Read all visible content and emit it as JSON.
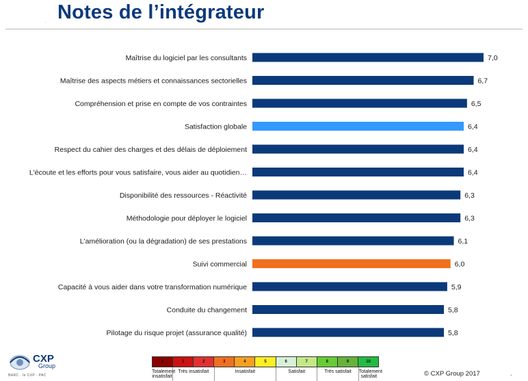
{
  "page": {
    "title": "Notes de l’intégrateur",
    "copyright": "© CXP Group  2017"
  },
  "logo": {
    "name": "CXP",
    "sub": "Group",
    "tagline": "BARC · le CXP · PAC"
  },
  "colors": {
    "bar_default": "#0b3a7a",
    "bar_highlight_blue": "#3399ff",
    "bar_highlight_orange": "#f07020",
    "title": "#0b3a7a"
  },
  "chart_data": {
    "type": "bar",
    "orientation": "horizontal",
    "categories": [
      "Maîtrise du logiciel par les consultants",
      "Maîtrise des aspects métiers et connaissances sectorielles",
      "Compréhension et prise en compte de vos contraintes",
      "Satisfaction globale",
      "Respect du cahier des charges et des délais de déploiement",
      "L'écoute et les efforts pour vous satisfaire, vous aider au quotidien…",
      "Disponibilité des ressources - Réactivité",
      "Méthodologie pour déployer le logiciel",
      "L'amélioration (ou la dégradation) de ses prestations",
      "Suivi commercial",
      "Capacité à vous aider dans votre transformation numérique",
      "Conduite du changement",
      "Pilotage du risque projet (assurance qualité)"
    ],
    "values": [
      7.0,
      6.7,
      6.5,
      6.4,
      6.4,
      6.4,
      6.3,
      6.3,
      6.1,
      6.0,
      5.9,
      5.8,
      5.8
    ],
    "value_labels": [
      "7,0",
      "6,7",
      "6,5",
      "6,4",
      "6,4",
      "6,4",
      "6,3",
      "6,3",
      "6,1",
      "6,0",
      "5,9",
      "5,8",
      "5,8"
    ],
    "bar_colors": [
      "#0b3a7a",
      "#0b3a7a",
      "#0b3a7a",
      "#3399ff",
      "#0b3a7a",
      "#0b3a7a",
      "#0b3a7a",
      "#0b3a7a",
      "#0b3a7a",
      "#f07020",
      "#0b3a7a",
      "#0b3a7a",
      "#0b3a7a"
    ],
    "xlim": [
      0,
      7.0
    ],
    "grid": false,
    "legend": "none"
  },
  "scale_legend": {
    "cells": [
      {
        "label": "0",
        "color": "#8b0000"
      },
      {
        "label": "1",
        "color": "#cc1111"
      },
      {
        "label": "2",
        "color": "#e23030"
      },
      {
        "label": "3",
        "color": "#f07020"
      },
      {
        "label": "4",
        "color": "#f5a020"
      },
      {
        "label": "5",
        "color": "#ffee22"
      },
      {
        "label": "6",
        "color": "#d8f0d8"
      },
      {
        "label": "7",
        "color": "#c4e888"
      },
      {
        "label": "8",
        "color": "#66cc33"
      },
      {
        "label": "9",
        "color": "#66b23a"
      },
      {
        "label": "10",
        "color": "#22bb44"
      }
    ],
    "groups": [
      {
        "label": "Totalement insatisfait",
        "span": 1
      },
      {
        "label": "Très insatisfait",
        "span": 2
      },
      {
        "label": "Insatisfait",
        "span": 3
      },
      {
        "label": "Satisfait",
        "span": 2
      },
      {
        "label": "Très satisfait",
        "span": 2
      },
      {
        "label": "Totalement satisfait",
        "span": 1
      }
    ]
  }
}
